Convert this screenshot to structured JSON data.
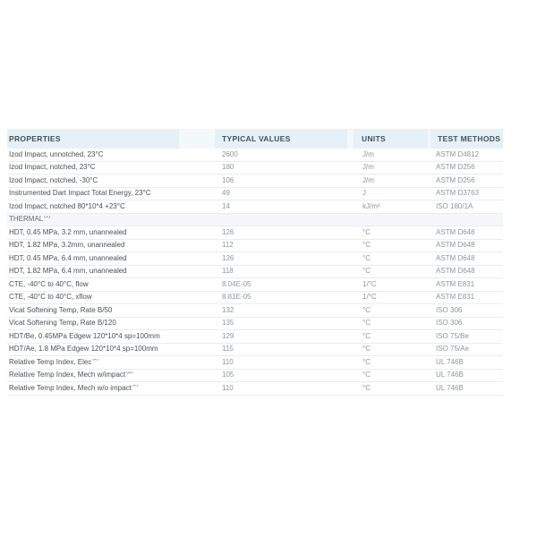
{
  "table": {
    "columns": [
      "PROPERTIES",
      "TYPICAL VALUES",
      "UNITS",
      "TEST METHODS"
    ],
    "rows": [
      {
        "type": "data",
        "property": "Izod Impact, unnotched, 23°C",
        "sup": "",
        "value": "2600",
        "unit": "J/m",
        "method": "ASTM D4812"
      },
      {
        "type": "data",
        "property": "Izod Impact, notched, 23°C",
        "sup": "",
        "value": "180",
        "unit": "J/m",
        "method": "ASTM D256"
      },
      {
        "type": "data",
        "property": "Izod Impact, notched, -30°C",
        "sup": "",
        "value": "106",
        "unit": "J/m",
        "method": "ASTM D256"
      },
      {
        "type": "data",
        "property": "Instrumented Dart Impact Total Energy, 23°C",
        "sup": "",
        "value": "49",
        "unit": "J",
        "method": "ASTM D3763"
      },
      {
        "type": "data",
        "property": "Izod Impact, notched 80*10*4 +23°C",
        "sup": "",
        "value": "14",
        "unit": "kJ/m²",
        "method": "ISO 180/1A"
      },
      {
        "type": "section",
        "property": "THERMAL",
        "sup": "(1)"
      },
      {
        "type": "data",
        "property": "HDT, 0.45 MPa, 3.2 mm, unannealed",
        "sup": "",
        "value": "126",
        "unit": "°C",
        "method": "ASTM D648"
      },
      {
        "type": "data",
        "property": "HDT, 1.82 MPa, 3.2mm, unannealed",
        "sup": "",
        "value": "112",
        "unit": "°C",
        "method": "ASTM D648"
      },
      {
        "type": "data",
        "property": "HDT, 0.45 MPa, 6.4 mm, unannealed",
        "sup": "",
        "value": "126",
        "unit": "°C",
        "method": "ASTM D648"
      },
      {
        "type": "data",
        "property": "HDT, 1.82 MPa, 6.4 mm, unannealed",
        "sup": "",
        "value": "118",
        "unit": "°C",
        "method": "ASTM D648"
      },
      {
        "type": "data",
        "property": "CTE, -40°C to 40°C, flow",
        "sup": "",
        "value": "8.04E-05",
        "unit": "1/°C",
        "method": "ASTM E831"
      },
      {
        "type": "data",
        "property": "CTE, -40°C to 40°C, xflow",
        "sup": "",
        "value": "8.81E-05",
        "unit": "1/°C",
        "method": "ASTM E831"
      },
      {
        "type": "data",
        "property": "Vicat Softening Temp, Rate B/50",
        "sup": "",
        "value": "132",
        "unit": "°C",
        "method": "ISO 306"
      },
      {
        "type": "data",
        "property": "Vicat Softening Temp, Rate B/120",
        "sup": "",
        "value": "135",
        "unit": "°C",
        "method": "ISO 306"
      },
      {
        "type": "data",
        "property": "HDT/Be, 0.45MPa Edgew 120*10*4 sp=100mm",
        "sup": "",
        "value": "129",
        "unit": "°C",
        "method": "ISO 75/Be"
      },
      {
        "type": "data",
        "property": "HDT/Ae, 1.8 MPa Edgew 120*10*4 sp=100mm",
        "sup": "",
        "value": "115",
        "unit": "°C",
        "method": "ISO 75/Ae"
      },
      {
        "type": "data",
        "property": "Relative Temp Index, Elec",
        "sup": "(2)",
        "value": "110",
        "unit": "°C",
        "method": "UL 746B"
      },
      {
        "type": "data",
        "property": "Relative Temp Index, Mech w/impact",
        "sup": "(2)",
        "value": "105",
        "unit": "°C",
        "method": "UL 746B"
      },
      {
        "type": "data",
        "property": "Relative Temp Index, Mech w/o impact",
        "sup": "(2)",
        "value": "110",
        "unit": "°C",
        "method": "UL 746B"
      }
    ]
  },
  "colors": {
    "header-bg": "#e6f0f7",
    "header-gap-bg": "#f3f8fb",
    "section-bg": "#f5f8fa",
    "divider": "#e9eced",
    "header-text": "#43505e",
    "prop-text": "#4b5157",
    "section-text": "#5f6b74",
    "muted-text": "#8e969c",
    "page-bg": "#ffffff"
  }
}
